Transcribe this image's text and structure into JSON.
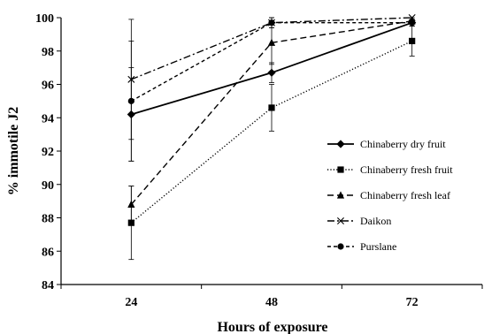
{
  "chart_data": {
    "type": "line",
    "title": "",
    "xlabel": "Hours of exposure",
    "ylabel": "% immotile J2",
    "categories": [
      "24",
      "48",
      "72"
    ],
    "ylim": [
      84,
      100
    ],
    "yticks": [
      84,
      86,
      88,
      90,
      92,
      94,
      96,
      98,
      100
    ],
    "grid": false,
    "legend_position": "right",
    "series": [
      {
        "name": "Chinaberry dry fruit",
        "values": [
          94.2,
          96.7,
          99.7
        ],
        "errors": [
          2.8,
          0.6,
          0.2
        ],
        "line": "solid",
        "marker": "diamond",
        "color": "#000000"
      },
      {
        "name": "Chinaberry fresh fruit",
        "values": [
          87.7,
          94.6,
          98.6
        ],
        "errors": [
          2.2,
          1.4,
          0.9
        ],
        "line": "dotted",
        "marker": "square",
        "color": "#000000"
      },
      {
        "name": "Chinaberry fresh leaf",
        "values": [
          88.8,
          98.5,
          99.8
        ],
        "errors": [
          1.1,
          1.3,
          0.2
        ],
        "line": "dashed",
        "marker": "triangle",
        "color": "#000000"
      },
      {
        "name": "Daikon",
        "values": [
          96.3,
          99.7,
          100.0
        ],
        "errors": [
          3.6,
          0.3,
          0.0
        ],
        "line": "dashdot",
        "marker": "x",
        "color": "#000000"
      },
      {
        "name": "Purslane",
        "values": [
          95.0,
          99.7,
          99.7
        ],
        "errors": [
          3.6,
          0.3,
          0.2
        ],
        "line": "shortdash",
        "marker": "circle",
        "color": "#000000"
      }
    ]
  }
}
